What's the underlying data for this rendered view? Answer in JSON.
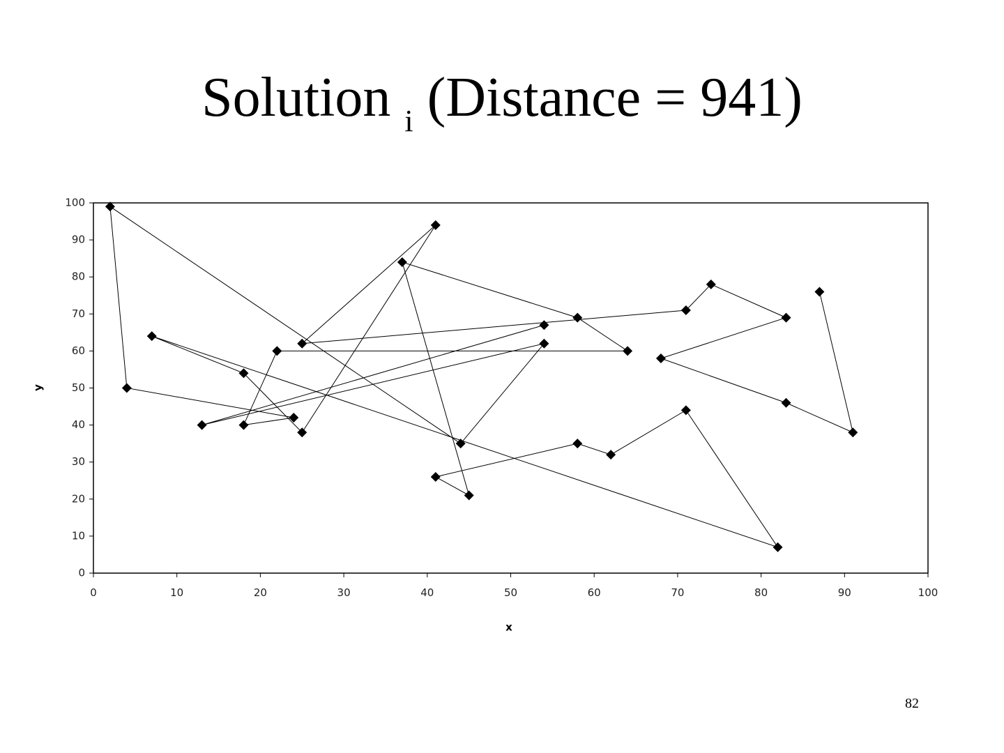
{
  "slide": {
    "title": "Solution",
    "title_subscript": "i",
    "title_suffix": "(Distance = 941)",
    "page_number": 82
  },
  "chart_data": {
    "type": "line",
    "x_label": "x",
    "y_label": "y",
    "x": [
      87,
      91,
      83,
      68,
      83,
      74,
      71,
      25,
      41,
      25,
      18,
      7,
      82,
      71,
      62,
      58,
      41,
      45,
      37,
      58,
      64,
      22,
      18,
      24,
      4,
      2,
      44,
      54,
      13,
      54
    ],
    "series": [
      {
        "color": "#000000",
        "marker": "diamond",
        "values": [
          76,
          38,
          46,
          58,
          69,
          78,
          71,
          62,
          94,
          38,
          54,
          64,
          7,
          44,
          32,
          35,
          26,
          21,
          84,
          69,
          60,
          60,
          40,
          42,
          50,
          99,
          35,
          62,
          40,
          67
        ]
      }
    ],
    "xlim": [
      0,
      100
    ],
    "ylim": [
      0,
      100
    ],
    "xticks": [
      0,
      10,
      20,
      30,
      40,
      50,
      60,
      70,
      80,
      90,
      100
    ],
    "yticks": [
      0,
      10,
      20,
      30,
      40,
      50,
      60,
      70,
      80,
      90,
      100
    ],
    "grid": false
  }
}
